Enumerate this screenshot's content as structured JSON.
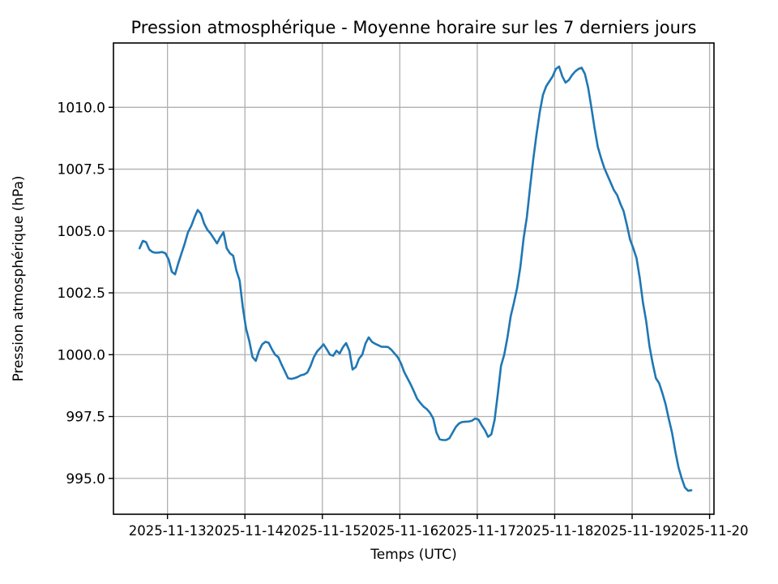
{
  "figure": {
    "background_color": "#ffffff"
  },
  "chart_data": {
    "type": "line",
    "title": "Pression atmosphérique - Moyenne horaire sur les 7 derniers jours",
    "xlabel": "Temps (UTC)",
    "ylabel": "Pression atmosphérique (hPa)",
    "legend": "none",
    "grid": "on",
    "line_color": "#1f77b4",
    "grid_color": "#b0b0b0",
    "spine_color": "#000000",
    "x_tick_labels": [
      "2025-11-13",
      "2025-11-14",
      "2025-11-15",
      "2025-11-16",
      "2025-11-17",
      "2025-11-18",
      "2025-11-19",
      "2025-11-20"
    ],
    "y_ticks": [
      995.0,
      997.5,
      1000.0,
      1002.5,
      1005.0,
      1007.5,
      1010.0
    ],
    "y_tick_labels": [
      "995.0",
      "997.5",
      "1000.0",
      "1002.5",
      "1005.0",
      "1007.5",
      "1010.0"
    ],
    "ylim": [
      993.55,
      1012.6
    ],
    "xlim_hours": [
      -8.1,
      178.0
    ],
    "x_first_tick_hour": 8.64,
    "x_tick_interval_hours": 24,
    "values_unit": "hPa",
    "values_interval": "hourly",
    "values_hourly_hpa": [
      1004.3,
      1004.6,
      1004.55,
      1004.25,
      1004.15,
      1004.12,
      1004.13,
      1004.15,
      1004.1,
      1003.85,
      1003.35,
      1003.25,
      1003.7,
      1004.1,
      1004.5,
      1004.95,
      1005.2,
      1005.55,
      1005.85,
      1005.7,
      1005.3,
      1005.05,
      1004.9,
      1004.7,
      1004.5,
      1004.75,
      1004.95,
      1004.3,
      1004.1,
      1004.0,
      1003.4,
      1003.0,
      1001.9,
      1001.05,
      1000.55,
      999.9,
      999.75,
      1000.15,
      1000.42,
      1000.52,
      1000.48,
      1000.22,
      1000.0,
      999.9,
      999.6,
      999.33,
      999.05,
      999.02,
      999.05,
      999.1,
      999.17,
      999.2,
      999.28,
      999.55,
      999.9,
      1000.13,
      1000.27,
      1000.42,
      1000.22,
      1000.0,
      999.96,
      1000.16,
      1000.05,
      1000.3,
      1000.47,
      1000.16,
      999.4,
      999.5,
      999.84,
      1000.0,
      1000.45,
      1000.7,
      1000.52,
      1000.44,
      1000.38,
      1000.32,
      1000.32,
      1000.31,
      1000.2,
      1000.05,
      999.9,
      999.65,
      999.3,
      999.05,
      998.8,
      998.52,
      998.22,
      998.05,
      997.9,
      997.8,
      997.65,
      997.42,
      996.85,
      996.58,
      996.55,
      996.55,
      996.62,
      996.85,
      997.08,
      997.22,
      997.28,
      997.29,
      997.3,
      997.33,
      997.42,
      997.38,
      997.15,
      996.95,
      996.68,
      996.78,
      997.35,
      998.4,
      999.55,
      1000.0,
      1000.7,
      1001.55,
      1002.1,
      1002.7,
      1003.55,
      1004.7,
      1005.55,
      1006.75,
      1007.9,
      1008.9,
      1009.8,
      1010.5,
      1010.85,
      1011.05,
      1011.25,
      1011.55,
      1011.65,
      1011.25,
      1011.0,
      1011.1,
      1011.3,
      1011.45,
      1011.55,
      1011.6,
      1011.35,
      1010.8,
      1010.0,
      1009.15,
      1008.4,
      1007.95,
      1007.55,
      1007.25,
      1006.95,
      1006.65,
      1006.45,
      1006.1,
      1005.8,
      1005.25,
      1004.65,
      1004.3,
      1003.9,
      1003.1,
      1002.1,
      1001.35,
      1000.35,
      999.65,
      999.05,
      998.85,
      998.45,
      998.0,
      997.4,
      996.85,
      996.1,
      995.45,
      995.0,
      994.63,
      994.5,
      994.52
    ]
  }
}
